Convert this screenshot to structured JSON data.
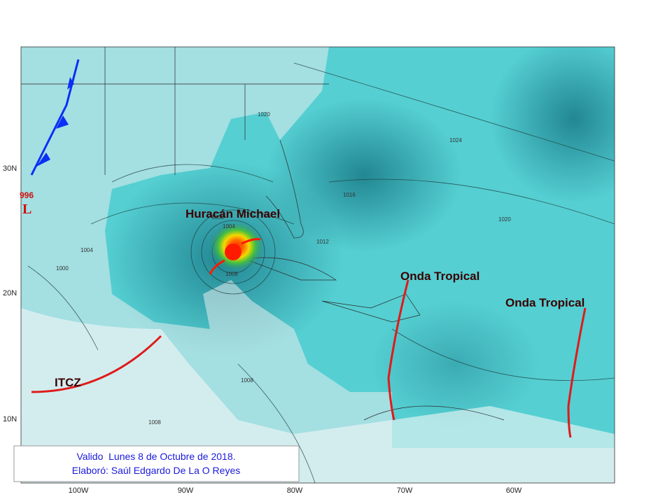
{
  "map": {
    "lat_labels": [
      "30N",
      "20N",
      "10N"
    ],
    "lon_labels": [
      "100W",
      "90W",
      "80W",
      "70W",
      "60W"
    ],
    "annotations": {
      "hurricane": "Huracán Michael",
      "tropical_waves": [
        "Onda Tropical",
        "Onda Tropical"
      ],
      "itcz": "ITCZ",
      "low_pressure": "996",
      "low_symbol": "L"
    },
    "isobar_labels": [
      "1020",
      "1024",
      "1016",
      "1020",
      "1012",
      "1008",
      "1004",
      "1000",
      "1004",
      "1008",
      "1008",
      "1008"
    ]
  },
  "caption": {
    "lines": [
      "Valido  Lunes 8 de Octubre de 2018.",
      "Elaboró: Saúl Edgardo De La O Reyes"
    ]
  }
}
